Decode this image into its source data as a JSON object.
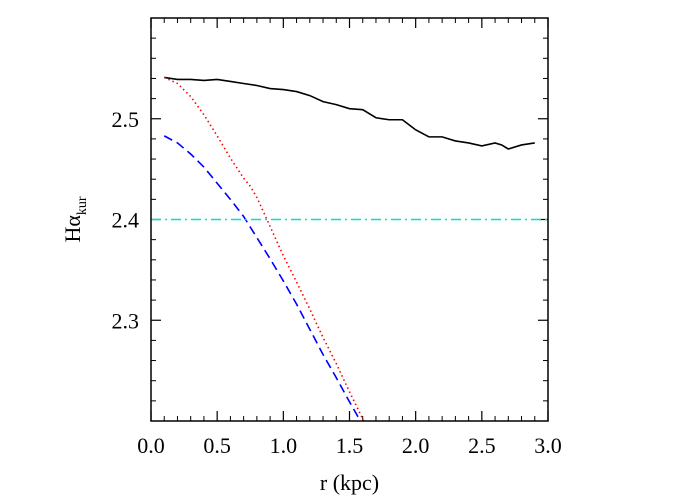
{
  "chart_data": {
    "type": "line",
    "xlabel": "r (kpc)",
    "ylabel": {
      "main": "Hα",
      "subscript": "kur"
    },
    "xlim": [
      0.0,
      3.0
    ],
    "ylim": [
      2.2,
      2.6
    ],
    "x_ticks": [
      "0.0",
      "0.5",
      "1.0",
      "1.5",
      "2.0",
      "2.5",
      "3.0"
    ],
    "y_ticks": [
      "2.3",
      "2.4",
      "2.5"
    ],
    "grid": false,
    "legend": "none",
    "series": [
      {
        "style": "solid",
        "color": "#000000",
        "x": [
          0.1,
          0.2,
          0.3,
          0.4,
          0.5,
          0.6,
          0.7,
          0.8,
          0.9,
          1.0,
          1.1,
          1.2,
          1.3,
          1.4,
          1.5,
          1.6,
          1.7,
          1.8,
          1.9,
          2.0,
          2.1,
          2.2,
          2.3,
          2.4,
          2.5,
          2.6,
          2.65,
          2.7,
          2.8,
          2.9
        ],
        "y": [
          2.541,
          2.539,
          2.539,
          2.538,
          2.539,
          2.537,
          2.535,
          2.533,
          2.53,
          2.529,
          2.527,
          2.523,
          2.517,
          2.514,
          2.51,
          2.509,
          2.501,
          2.499,
          2.499,
          2.489,
          2.482,
          2.482,
          2.478,
          2.476,
          2.473,
          2.476,
          2.474,
          2.47,
          2.474,
          2.476
        ]
      },
      {
        "style": "dotted",
        "color": "#ff0000",
        "x": [
          0.1,
          0.2,
          0.3,
          0.4,
          0.5,
          0.6,
          0.7,
          0.75,
          0.8,
          0.9,
          1.0,
          1.1,
          1.2,
          1.3,
          1.4,
          1.5,
          1.6,
          1.65
        ],
        "y": [
          2.541,
          2.535,
          2.522,
          2.504,
          2.483,
          2.461,
          2.441,
          2.433,
          2.422,
          2.393,
          2.364,
          2.338,
          2.311,
          2.283,
          2.257,
          2.229,
          2.202,
          2.19
        ]
      },
      {
        "style": "dashed",
        "color": "#0000ff",
        "x": [
          0.1,
          0.2,
          0.3,
          0.4,
          0.5,
          0.6,
          0.7,
          0.8,
          0.9,
          1.0,
          1.1,
          1.2,
          1.3,
          1.4,
          1.5,
          1.6,
          1.65
        ],
        "y": [
          2.483,
          2.476,
          2.465,
          2.452,
          2.436,
          2.42,
          2.403,
          2.382,
          2.361,
          2.339,
          2.316,
          2.291,
          2.266,
          2.243,
          2.219,
          2.196,
          2.19
        ]
      },
      {
        "style": "dash-dot",
        "color": "#00e0e0",
        "x": [
          0.0,
          3.0
        ],
        "y": [
          2.4,
          2.4
        ]
      }
    ]
  }
}
